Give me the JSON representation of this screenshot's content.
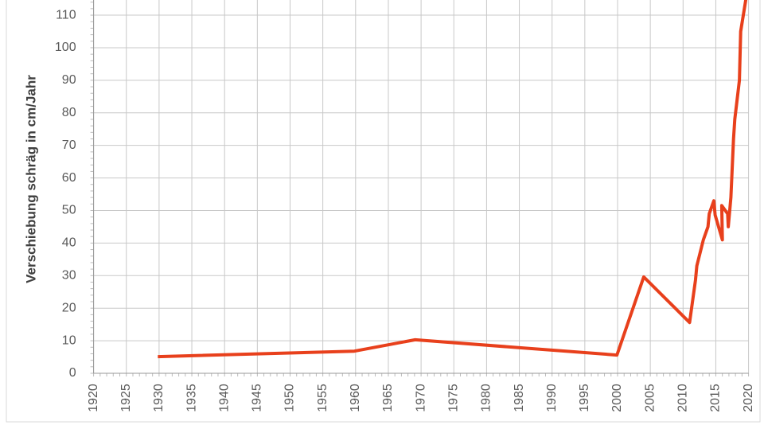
{
  "chart_data": {
    "type": "line",
    "y_label": "Verschiebung schräg in cm/Jahr",
    "x": [
      1929.8,
      1959.8,
      1969.1,
      1999.9,
      2004.0,
      2011.0,
      2011.9,
      2012.1,
      2013.1,
      2013.8,
      2014.0,
      2014.7,
      2014.9,
      2016.0,
      2015.9,
      2016.8,
      2016.9,
      2017.3,
      2017.7,
      2017.9,
      2018.6,
      2018.8,
      2019.6
    ],
    "series": [
      {
        "color": "#e8401c",
        "values": [
          5.1,
          6.8,
          10.3,
          5.6,
          29.6,
          15.6,
          28.6,
          33,
          41,
          45,
          49,
          53,
          48.6,
          41,
          51.5,
          49,
          45,
          54,
          72,
          78,
          90,
          105,
          115
        ]
      }
    ],
    "xlim": [
      1920,
      2020
    ],
    "xticks": [
      1920,
      1925,
      1930,
      1935,
      1940,
      1945,
      1950,
      1955,
      1960,
      1965,
      1970,
      1975,
      1980,
      1985,
      1990,
      1995,
      2000,
      2005,
      2010,
      2015,
      2020
    ],
    "ylim": [
      0,
      115
    ],
    "yticks": [
      0,
      10,
      20,
      30,
      40,
      50,
      60,
      70,
      80,
      90,
      100,
      110
    ],
    "grid": true
  }
}
